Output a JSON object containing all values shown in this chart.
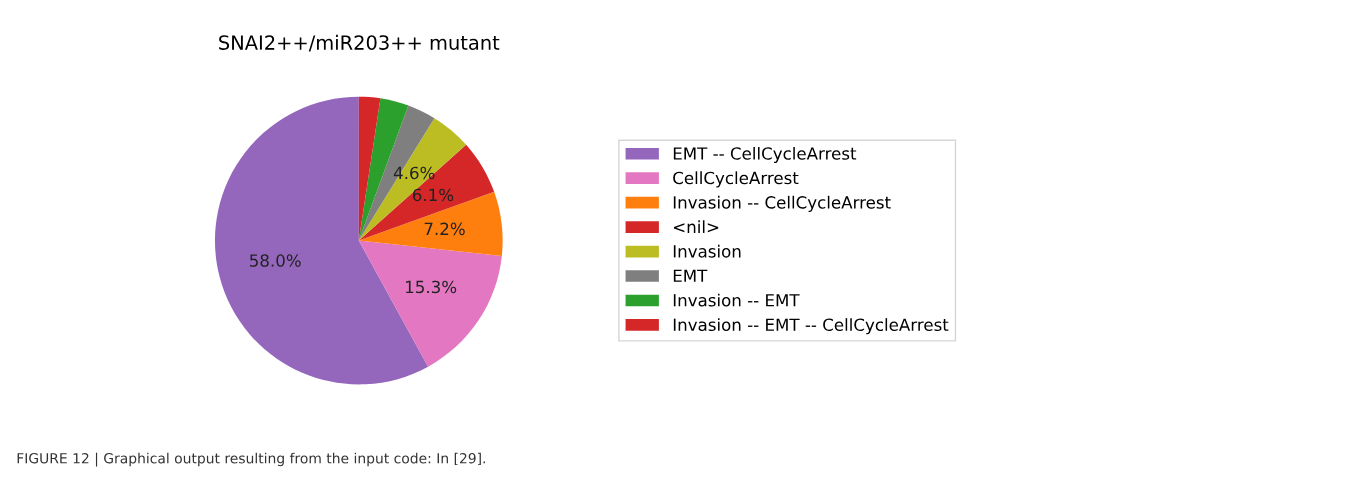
{
  "chart_data": {
    "type": "pie",
    "title": "SNAI2++/miR203++ mutant",
    "categories": [
      "EMT -- CellCycleArrest",
      "CellCycleArrest",
      "Invasion -- CellCycleArrest",
      "<nil>",
      "Invasion",
      "EMT",
      "Invasion -- EMT",
      "Invasion -- EMT -- CellCycleArrest"
    ],
    "values": [
      58.0,
      15.3,
      7.2,
      6.1,
      4.6,
      3.2,
      3.2,
      2.4
    ],
    "colors": [
      "#9467bd",
      "#e377c2",
      "#ff7f0e",
      "#d62728",
      "#bcbd22",
      "#7f7f7f",
      "#2ca02c",
      "#d62728"
    ],
    "value_labels": [
      "58.0%",
      "15.3%",
      "7.2%",
      "6.1%",
      "4.6%",
      null,
      null,
      null
    ],
    "legend": "right",
    "annotations": [
      "FIGURE 12 | Graphical output resulting from the input code: In [29]."
    ]
  }
}
